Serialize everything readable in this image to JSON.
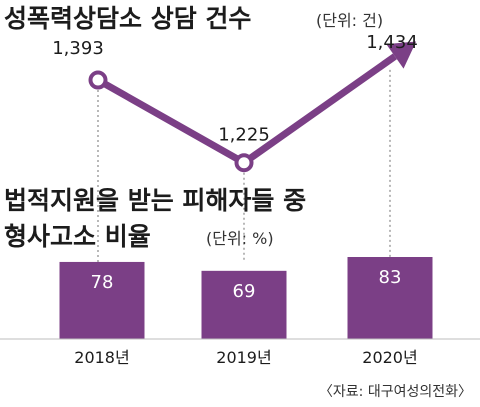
{
  "chart_data": [
    {
      "type": "line",
      "title": "성폭력상담소 상담 건수",
      "unit_note": "(단위: 건)",
      "x": [
        "2018년",
        "2019년",
        "2020년"
      ],
      "values": [
        1393,
        1225,
        1434
      ],
      "value_labels": [
        "1,393",
        "1,225",
        "1,434"
      ],
      "color": "#7b3f86"
    },
    {
      "type": "bar",
      "title_line1": "법적지원을 받는 피해자들 중",
      "title_line2": "형사고소 비율",
      "unit_note": "(단위: %)",
      "categories": [
        "2018년",
        "2019년",
        "2020년"
      ],
      "values": [
        78,
        69,
        83
      ],
      "color": "#7b3f86"
    }
  ],
  "source": "〈자료: 대구여성의전화〉"
}
